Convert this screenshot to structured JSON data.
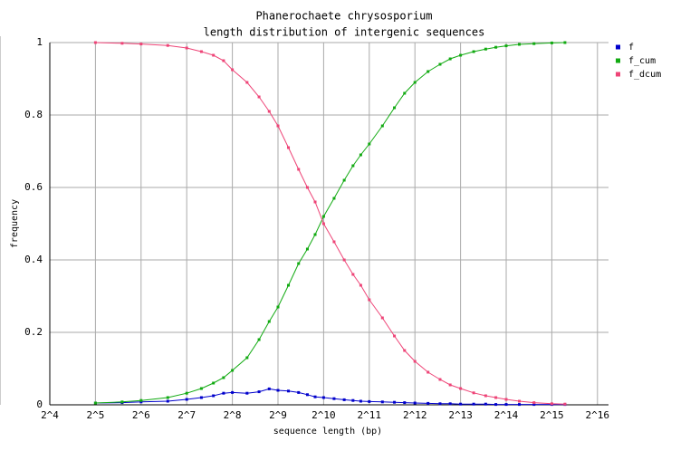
{
  "chart_data": {
    "type": "line",
    "title": "Phanerochaete chrysosporium",
    "subtitle": "length distribution of intergenic sequences",
    "x_label": "sequence length (bp)",
    "y_label": "frequency",
    "x_log_base": 2,
    "grid": true,
    "legend": "right-top",
    "x": [
      32,
      48,
      64,
      96,
      128,
      160,
      192,
      224,
      256,
      320,
      384,
      448,
      512,
      600,
      700,
      800,
      900,
      1024,
      1200,
      1400,
      1600,
      1800,
      2048,
      2500,
      3000,
      3500,
      4096,
      5000,
      6000,
      7000,
      8192,
      10000,
      12000,
      14000,
      16384,
      20000,
      25000,
      32768,
      40000
    ],
    "series": [
      {
        "name": "f",
        "color": "#0000cc",
        "values": [
          0.005,
          0.006,
          0.008,
          0.01,
          0.015,
          0.02,
          0.025,
          0.032,
          0.034,
          0.032,
          0.036,
          0.044,
          0.04,
          0.038,
          0.034,
          0.028,
          0.022,
          0.02,
          0.017,
          0.014,
          0.012,
          0.01,
          0.009,
          0.008,
          0.007,
          0.006,
          0.005,
          0.004,
          0.003,
          0.003,
          0.002,
          0.002,
          0.002,
          0.001,
          0.001,
          0.001,
          0.001,
          0.001,
          0.001
        ]
      },
      {
        "name": "f_cum",
        "color": "#11aa11",
        "values": [
          0.005,
          0.008,
          0.012,
          0.02,
          0.032,
          0.045,
          0.06,
          0.075,
          0.095,
          0.13,
          0.18,
          0.23,
          0.27,
          0.33,
          0.39,
          0.43,
          0.47,
          0.52,
          0.57,
          0.62,
          0.66,
          0.69,
          0.72,
          0.77,
          0.82,
          0.86,
          0.89,
          0.92,
          0.94,
          0.955,
          0.965,
          0.975,
          0.982,
          0.987,
          0.991,
          0.995,
          0.997,
          0.999,
          1.0
        ]
      },
      {
        "name": "f_dcum",
        "color": "#ee4477",
        "values": [
          1.0,
          0.998,
          0.996,
          0.992,
          0.985,
          0.975,
          0.965,
          0.95,
          0.925,
          0.89,
          0.85,
          0.81,
          0.77,
          0.71,
          0.65,
          0.6,
          0.56,
          0.5,
          0.45,
          0.4,
          0.36,
          0.33,
          0.29,
          0.24,
          0.19,
          0.15,
          0.12,
          0.09,
          0.07,
          0.055,
          0.045,
          0.033,
          0.025,
          0.02,
          0.015,
          0.01,
          0.006,
          0.003,
          0.002
        ]
      }
    ],
    "xlim": [
      16,
      77500
    ],
    "xticks": [
      {
        "value": 16,
        "label": "2^4"
      },
      {
        "value": 32,
        "label": "2^5"
      },
      {
        "value": 64,
        "label": "2^6"
      },
      {
        "value": 128,
        "label": "2^7"
      },
      {
        "value": 256,
        "label": "2^8"
      },
      {
        "value": 512,
        "label": "2^9"
      },
      {
        "value": 1024,
        "label": "2^10"
      },
      {
        "value": 2048,
        "label": "2^11"
      },
      {
        "value": 4096,
        "label": "2^12"
      },
      {
        "value": 8192,
        "label": "2^13"
      },
      {
        "value": 16384,
        "label": "2^14"
      },
      {
        "value": 32768,
        "label": "2^15"
      },
      {
        "value": 65536,
        "label": "2^16"
      }
    ],
    "ylim": [
      0,
      1
    ],
    "yticks": [
      0,
      0.2,
      0.4,
      0.6,
      0.8,
      1
    ]
  }
}
